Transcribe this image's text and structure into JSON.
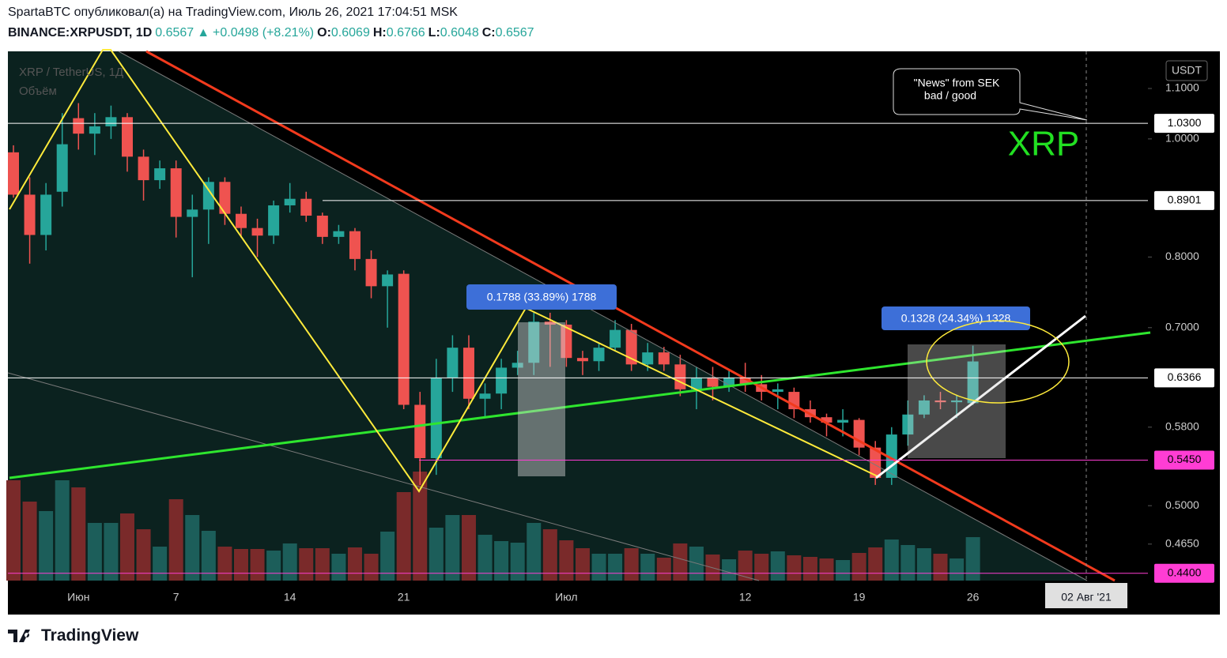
{
  "header": {
    "line1": "SpartaBTC опубликовал(а) на TradingView.com, Июль 26, 2021 17:04:51 MSK",
    "symbol": "BINANCE:XRPUSDT, 1D",
    "price": "0.6567",
    "arrow": "▲",
    "change": "+0.0498 (+8.21%)",
    "o_label": "O:",
    "o": "0.6069",
    "h_label": "H:",
    "h": "0.6766",
    "l_label": "L:",
    "l": "0.6048",
    "c_label": "C:",
    "c": "0.6567"
  },
  "footer": {
    "brand": "TradingView"
  },
  "chart_data": {
    "type": "candlestick",
    "legend_symbol": "XRP / TetherUS, 1Д",
    "legend_volume": "Объём",
    "currency": "USDT",
    "log_scale": true,
    "ylim": [
      0.434,
      1.18
    ],
    "yticks": [
      {
        "value": 1.1,
        "label": "1.1000"
      },
      {
        "value": 1.0,
        "label": "1.0000"
      },
      {
        "value": 0.8,
        "label": "0.8000"
      },
      {
        "value": 0.7,
        "label": "0.7000"
      },
      {
        "value": 0.58,
        "label": "0.5800"
      },
      {
        "value": 0.5,
        "label": "0.5000"
      },
      {
        "value": 0.465,
        "label": "0.4650"
      }
    ],
    "up_color": "#26a69a",
    "down_color": "#ef5350",
    "volume_up_color": "#1c5e5a",
    "volume_down_color": "#7a2a2a",
    "categories": [
      null,
      null,
      null,
      null,
      "Июн",
      null,
      null,
      null,
      null,
      null,
      "7",
      null,
      null,
      null,
      null,
      null,
      null,
      "14",
      null,
      null,
      null,
      null,
      null,
      null,
      "21",
      null,
      null,
      null,
      null,
      null,
      null,
      null,
      null,
      null,
      "Июл",
      null,
      null,
      null,
      null,
      null,
      null,
      null,
      null,
      null,
      null,
      "12",
      null,
      null,
      null,
      null,
      null,
      null,
      "19",
      null,
      null,
      null,
      null,
      null,
      null,
      "26"
    ],
    "open": [
      0.975,
      0.9,
      0.834,
      0.905,
      1.04,
      1.01,
      1.024,
      1.042,
      0.967,
      0.925,
      0.946,
      0.863,
      0.875,
      0.922,
      0.868,
      0.845,
      0.833,
      0.882,
      0.893,
      0.865,
      0.831,
      0.84,
      0.797,
      0.757,
      0.775,
      0.605,
      0.547,
      0.637,
      0.674,
      0.612,
      0.618,
      0.649,
      0.655,
      0.708,
      0.704,
      0.661,
      0.657,
      0.674,
      0.697,
      0.653,
      0.668,
      0.653,
      0.623,
      0.637,
      0.626,
      0.637,
      0.629,
      0.62,
      0.62,
      0.6,
      0.591,
      0.585,
      0.588,
      0.558,
      0.527,
      0.572,
      0.594,
      0.61,
      0.608,
      0.6069
    ],
    "high": [
      0.988,
      0.93,
      0.92,
      1.05,
      1.07,
      1.05,
      1.065,
      1.05,
      0.98,
      0.96,
      0.96,
      0.9,
      0.93,
      0.93,
      0.88,
      0.86,
      0.89,
      0.92,
      0.905,
      0.87,
      0.85,
      0.845,
      0.81,
      0.78,
      0.78,
      0.62,
      0.66,
      0.69,
      0.69,
      0.63,
      0.66,
      0.67,
      0.72,
      0.72,
      0.71,
      0.67,
      0.68,
      0.71,
      0.705,
      0.68,
      0.675,
      0.665,
      0.65,
      0.65,
      0.645,
      0.655,
      0.64,
      0.63,
      0.625,
      0.61,
      0.595,
      0.6,
      0.59,
      0.565,
      0.58,
      0.61,
      0.616,
      0.62,
      0.616,
      0.6766
    ],
    "low": [
      0.895,
      0.79,
      0.81,
      0.88,
      0.98,
      0.97,
      1.0,
      0.94,
      0.89,
      0.91,
      0.83,
      0.77,
      0.82,
      0.85,
      0.83,
      0.8,
      0.82,
      0.87,
      0.855,
      0.82,
      0.82,
      0.78,
      0.74,
      0.7,
      0.6,
      0.52,
      0.53,
      0.62,
      0.6,
      0.59,
      0.6,
      0.64,
      0.64,
      0.65,
      0.65,
      0.64,
      0.645,
      0.67,
      0.645,
      0.645,
      0.645,
      0.615,
      0.6,
      0.61,
      0.62,
      0.62,
      0.61,
      0.6,
      0.59,
      0.585,
      0.57,
      0.57,
      0.55,
      0.52,
      0.52,
      0.56,
      0.59,
      0.6,
      0.59,
      0.6048
    ],
    "close": [
      0.9,
      0.834,
      0.9,
      0.99,
      1.01,
      1.024,
      1.042,
      0.967,
      0.925,
      0.946,
      0.863,
      0.875,
      0.922,
      0.868,
      0.845,
      0.833,
      0.882,
      0.893,
      0.865,
      0.831,
      0.84,
      0.797,
      0.757,
      0.774,
      0.605,
      0.547,
      0.637,
      0.674,
      0.612,
      0.618,
      0.649,
      0.655,
      0.708,
      0.704,
      0.661,
      0.657,
      0.674,
      0.697,
      0.653,
      0.668,
      0.653,
      0.623,
      0.637,
      0.626,
      0.637,
      0.629,
      0.62,
      0.623,
      0.6,
      0.591,
      0.585,
      0.588,
      0.558,
      0.527,
      0.572,
      0.594,
      0.61,
      0.608,
      0.61,
      0.6567
    ],
    "volume": [
      127,
      100,
      88,
      127,
      118,
      73,
      73,
      85,
      65,
      43,
      103,
      83,
      63,
      43,
      40,
      40,
      38,
      47,
      41,
      41,
      34,
      42,
      34,
      62,
      112,
      138,
      67,
      83,
      83,
      58,
      50,
      48,
      73,
      65,
      51,
      41,
      34,
      34,
      41,
      34,
      29,
      47,
      43,
      33,
      27,
      38,
      34,
      37,
      32,
      30,
      28,
      26,
      35,
      42,
      52,
      45,
      41,
      34,
      28,
      55
    ],
    "price_lines": [
      {
        "value": 1.03,
        "label": "1.0300",
        "color": "#ffffff"
      },
      {
        "value": 0.8901,
        "label": "0.8901",
        "color": "#ffffff"
      },
      {
        "value": 0.6366,
        "label": "0.6366",
        "color": "#ffffff"
      },
      {
        "value": 0.545,
        "label": "0.5450",
        "color": "#ff3dd4"
      },
      {
        "value": 0.44,
        "label": "0.4400",
        "color": "#ff3dd4"
      }
    ],
    "crosshair_label": "02 Авг '21",
    "annotations": {
      "measure1": "0.1788 (33.89%) 1788",
      "measure2": "0.1328 (24.34%) 1328",
      "callout1": "\"News\" from SEK",
      "callout2": "bad / good",
      "big_label": "XRP"
    }
  }
}
